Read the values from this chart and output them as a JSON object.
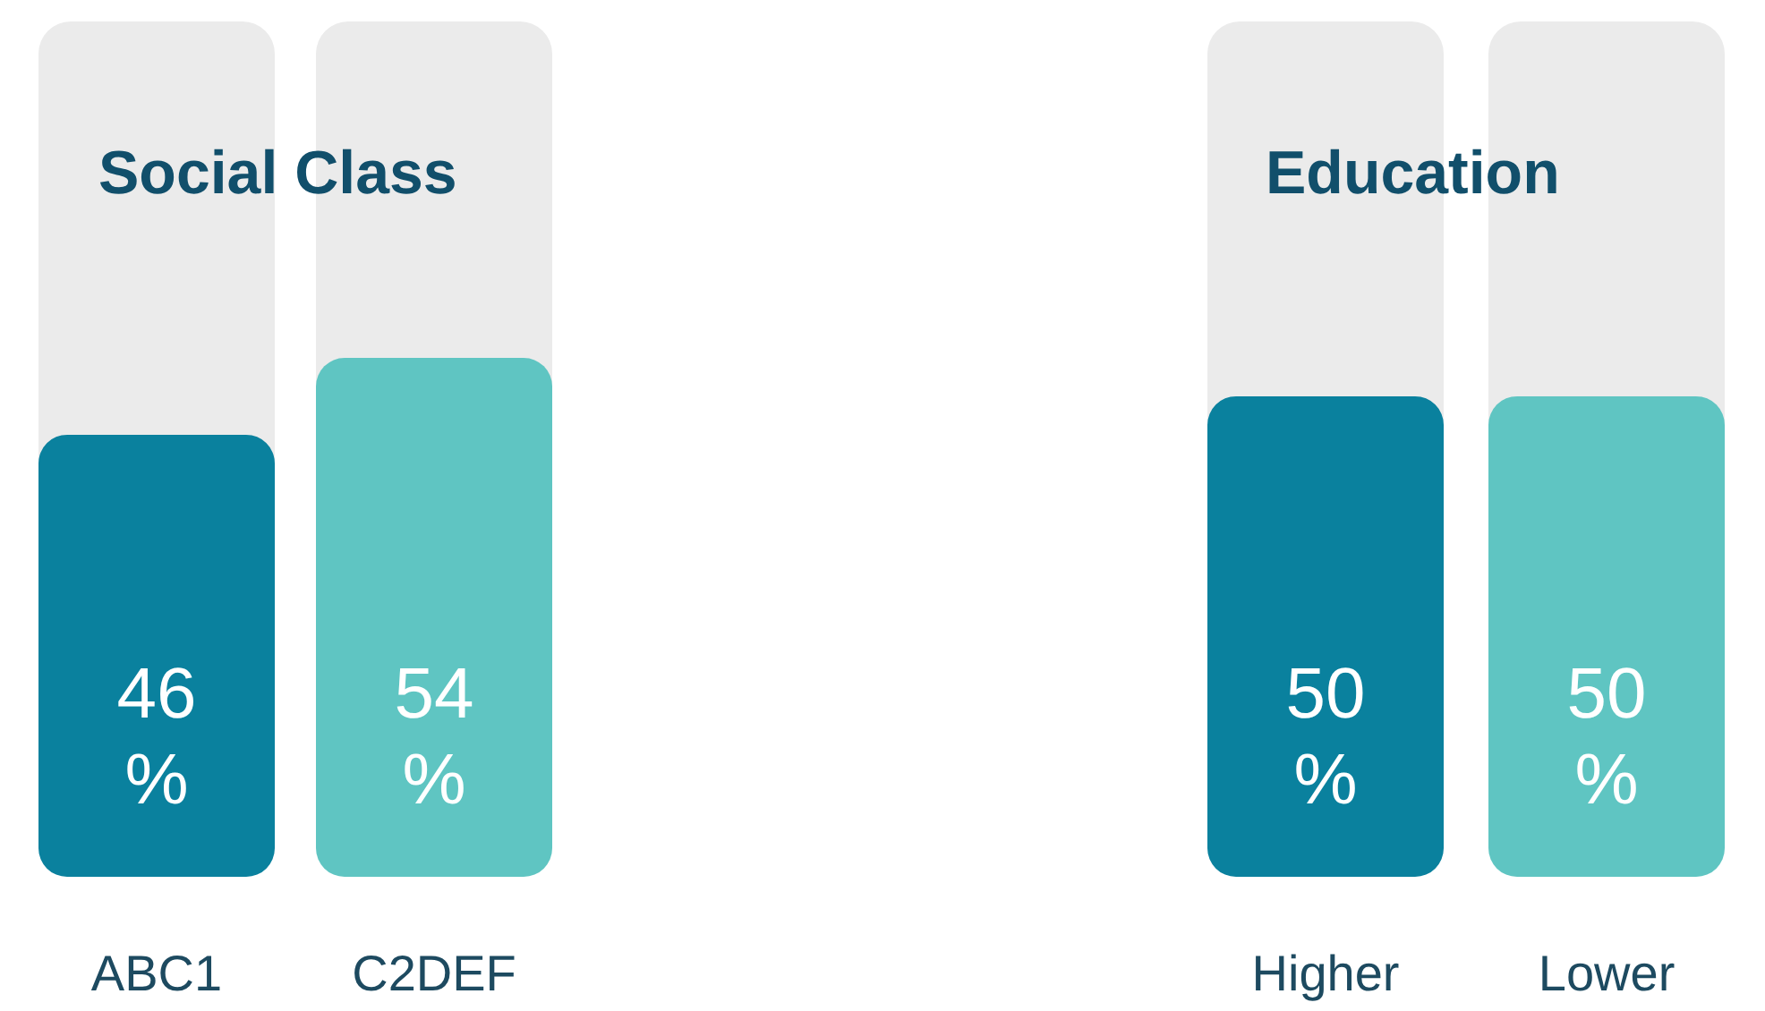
{
  "chart_data": [
    {
      "type": "bar",
      "title": "Social Class",
      "categories": [
        "ABC1",
        "C2DEF"
      ],
      "values": [
        46,
        54
      ],
      "colors": [
        "#0a819e",
        "#5fc5c2"
      ],
      "value_labels": [
        "46%",
        "54%"
      ],
      "ylim": [
        0,
        89
      ],
      "tick_labels": "x"
    },
    {
      "type": "bar",
      "title": "Education",
      "categories": [
        "Higher",
        "Lower"
      ],
      "values": [
        50,
        50
      ],
      "colors": [
        "#0a819e",
        "#5fc5c2"
      ],
      "value_labels": [
        "50%",
        "50%"
      ],
      "ylim": [
        0,
        89
      ],
      "tick_labels": "x"
    }
  ]
}
